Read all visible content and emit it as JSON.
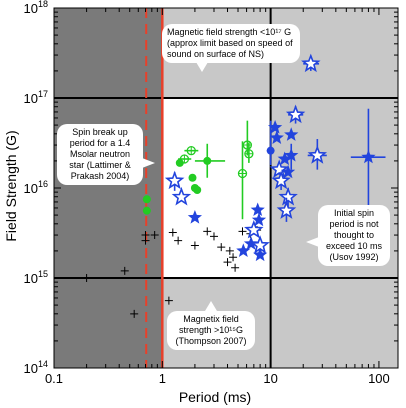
{
  "chart_data": {
    "type": "scatter",
    "title": "",
    "xlabel": "Period (ms)",
    "ylabel": "Field Strength (G)",
    "x_scale": "log",
    "y_scale": "log",
    "xlim": [
      0.1,
      150
    ],
    "ylim": [
      100000000000000.0,
      1e+18
    ],
    "x_ticks": [
      0.1,
      1,
      10,
      100
    ],
    "x_tick_labels": [
      "0.1",
      "1",
      "10",
      "100"
    ],
    "y_ticks": [
      100000000000000.0,
      1000000000000000.0,
      1e+16,
      1e+17,
      1e+18
    ],
    "y_tick_labels": [
      {
        "base": "10",
        "exp": "14"
      },
      {
        "base": "10",
        "exp": "15"
      },
      {
        "base": "10",
        "exp": "16"
      },
      {
        "base": "10",
        "exp": "17"
      },
      {
        "base": "10",
        "exp": "18"
      }
    ],
    "reference_lines": {
      "spin_breakup_period_dashed_x": 0.71,
      "solid_period_x": 1.0,
      "initial_spin_limit_x": 10,
      "magnetar_B_lower": 1000000000000000.0,
      "magnetic_B_upper": 1e+17
    },
    "series": [
      {
        "marker": "cross",
        "color": "#000000",
        "points": [
          {
            "x": 0.2,
            "y": 1000000000000000.0
          },
          {
            "x": 0.55,
            "y": 400000000000000.0
          },
          {
            "x": 0.45,
            "y": 1200000000000000.0
          },
          {
            "x": 0.7,
            "y": 3000000000000000.0
          },
          {
            "x": 0.7,
            "y": 2600000000000000.0
          },
          {
            "x": 0.85,
            "y": 3000000000000000.0
          },
          {
            "x": 1.15,
            "y": 560000000000000.0
          },
          {
            "x": 1.25,
            "y": 3200000000000000.0
          },
          {
            "x": 1.4,
            "y": 2600000000000000.0
          },
          {
            "x": 2.0,
            "y": 2300000000000000.0
          },
          {
            "x": 2.6,
            "y": 3300000000000000.0
          },
          {
            "x": 3.0,
            "y": 2900000000000000.0
          },
          {
            "x": 3.5,
            "y": 2200000000000000.0
          },
          {
            "x": 4.0,
            "y": 1500000000000000.0
          },
          {
            "x": 4.2,
            "y": 2000000000000000.0
          },
          {
            "x": 4.5,
            "y": 1700000000000000.0
          },
          {
            "x": 4.7,
            "y": 1300000000000000.0
          },
          {
            "x": 5.5,
            "y": 3300000000000000.0
          },
          {
            "x": 6.5,
            "y": 3100000000000000.0
          },
          {
            "x": 7.5,
            "y": 3400000000000000.0
          }
        ]
      },
      {
        "marker": "green",
        "color": "#22cc22",
        "points": [
          {
            "x": 0.72,
            "y": 7500000000000000.0,
            "shape": "dot"
          },
          {
            "x": 0.72,
            "y": 5600000000000000.0,
            "shape": "dot"
          },
          {
            "x": 1.6,
            "y": 2.1e+16,
            "shape": "circle-plus",
            "xerr": [
              1.4,
              1.85
            ]
          },
          {
            "x": 1.85,
            "y": 2.6e+16,
            "shape": "circle-plus",
            "xerr": [
              1.6,
              2.15
            ]
          },
          {
            "x": 1.45,
            "y": 1.9e+16,
            "shape": "dot"
          },
          {
            "x": 1.9,
            "y": 1.3e+16,
            "shape": "dot"
          },
          {
            "x": 2.0,
            "y": 1e+16,
            "shape": "dot"
          },
          {
            "x": 2.1,
            "y": 9500000000000000.0,
            "shape": "dot"
          },
          {
            "x": 2.6,
            "y": 2e+16,
            "shape": "dot",
            "xerr": [
              2.0,
              3.8
            ],
            "yerr": [
              1.3e+16,
              3.1e+16
            ]
          },
          {
            "x": 5.5,
            "y": 1.45e+16,
            "shape": "circle-plus",
            "yerr": [
              4500000000000000.0,
              3.3e+16
            ]
          },
          {
            "x": 6.1,
            "y": 3e+16,
            "shape": "circle-plus",
            "yerr": [
              2.3e+16,
              5.6e+16
            ]
          },
          {
            "x": 6.3,
            "y": 2.4e+16,
            "shape": "circle-plus",
            "yerr": [
              1.9e+16,
              3.2e+16
            ]
          }
        ]
      },
      {
        "marker": "blue",
        "color": "#2244dd",
        "points": [
          {
            "x": 1.3,
            "y": 1.2e+16,
            "shape": "star-open",
            "yerr": [
              9300000000000000.0,
              1.5e+16
            ]
          },
          {
            "x": 1.5,
            "y": 7900000000000000.0,
            "shape": "star-open"
          },
          {
            "x": 2.0,
            "y": 4700000000000000.0,
            "shape": "star"
          },
          {
            "x": 5.6,
            "y": 2000000000000000.0,
            "shape": "star"
          },
          {
            "x": 6.6,
            "y": 2400000000000000.0,
            "shape": "star"
          },
          {
            "x": 7.0,
            "y": 3400000000000000.0,
            "shape": "star-open"
          },
          {
            "x": 8.0,
            "y": 1800000000000000.0,
            "shape": "star"
          },
          {
            "x": 8.0,
            "y": 2300000000000000.0,
            "shape": "star-open"
          },
          {
            "x": 7.8,
            "y": 4400000000000000.0,
            "shape": "star"
          },
          {
            "x": 7.6,
            "y": 5700000000000000.0,
            "shape": "star"
          },
          {
            "x": 10.0,
            "y": 2.6e+16,
            "shape": "dot",
            "yerr": [
              1.8e+16,
              5.6e+16
            ]
          },
          {
            "x": 11.4,
            "y": 3.6e+16,
            "shape": "star"
          },
          {
            "x": 11.0,
            "y": 4.7e+16,
            "shape": "star"
          },
          {
            "x": 12.0,
            "y": 1.6e+16,
            "shape": "star-open",
            "yerr": [
              1.4e+16,
              1.8e+16
            ]
          },
          {
            "x": 12.5,
            "y": 1.2e+16,
            "shape": "star-open",
            "yerr": [
              9500000000000000.0,
              1.5e+16
            ]
          },
          {
            "x": 13.5,
            "y": 2.1e+16,
            "shape": "star"
          },
          {
            "x": 14.5,
            "y": 1.5e+16,
            "shape": "star"
          },
          {
            "x": 14.5,
            "y": 7900000000000000.0,
            "shape": "star-open",
            "yerr": [
              6200000000000000.0,
              1e+16
            ]
          },
          {
            "x": 14.0,
            "y": 5600000000000000.0,
            "shape": "star-open",
            "yerr": [
              4200000000000000.0,
              7800000000000000.0
            ]
          },
          {
            "x": 15.5,
            "y": 3.9e+16,
            "shape": "star"
          },
          {
            "x": 15.5,
            "y": 2.3e+16,
            "shape": "star",
            "yerr": [
              1.6e+16,
              3.1e+16
            ]
          },
          {
            "x": 17.0,
            "y": 6.5e+16,
            "shape": "star-open",
            "xerr": [
              14.5,
              20.0
            ],
            "yerr": [
              5.2e+16,
              8.1e+16
            ]
          },
          {
            "x": 23.5,
            "y": 2.4e+17,
            "shape": "star-open",
            "xerr": [
              20.0,
              28.0
            ],
            "yerr": [
              2e+17,
              2.9e+17
            ]
          },
          {
            "x": 27.0,
            "y": 2.3e+16,
            "shape": "star-open",
            "xerr": [
              22.0,
              33.0
            ],
            "yerr": [
              1.6e+16,
              3.5e+16
            ]
          },
          {
            "x": 80.0,
            "y": 2.2e+16,
            "shape": "star",
            "xerr": [
              55.0,
              115.0
            ],
            "yerr": [
              6400000000000000.0,
              7.6e+16
            ]
          }
        ]
      }
    ]
  },
  "annotations": {
    "magnetic_limit": "Magnetic field strength <10¹⁷ G (approx limit based on speed of sound on surface of NS)",
    "spin_breakup": "Spin break up period for a 1.4 Msolar neutron star (Lattimer & Prakash 2004)",
    "initial_spin": "Initial spin period is not thought to exceed 10 ms (Usov 1992)",
    "magnetar_field": "Magnetix field strength >10¹⁵G (Thompson 2007)"
  }
}
